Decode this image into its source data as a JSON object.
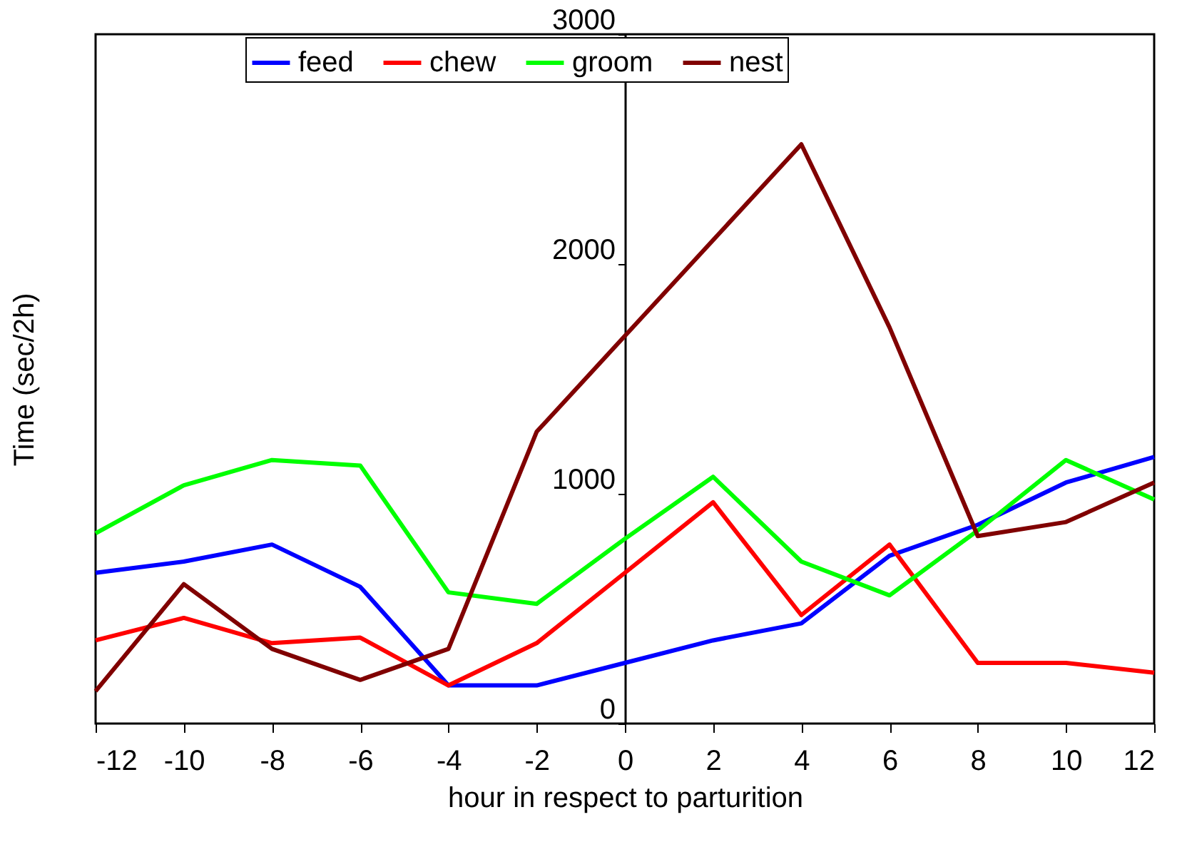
{
  "chart_data": {
    "type": "line",
    "xlabel": "hour  in respect to parturition",
    "ylabel": "Time (sec/2h)",
    "x": [
      -12,
      -10,
      -8,
      -6,
      -4,
      -2,
      0,
      2,
      4,
      6,
      8,
      10,
      12
    ],
    "series": [
      {
        "name": "feed",
        "color": "#0000ff",
        "values": [
          656,
          705,
          779,
          595,
          166,
          166,
          264,
          362,
          436,
          730,
          865,
          1049,
          1160
        ]
      },
      {
        "name": "chew",
        "color": "#ff0000",
        "values": [
          362,
          460,
          350,
          374,
          166,
          350,
          656,
          963,
          472,
          779,
          264,
          264,
          221
        ]
      },
      {
        "name": "groom",
        "color": "#00ff00",
        "values": [
          828,
          1037,
          1147,
          1123,
          571,
          521,
          804,
          1074,
          705,
          558,
          840,
          1147,
          975
        ]
      },
      {
        "name": "nest",
        "color": "#800000",
        "values": [
          141,
          607,
          325,
          190,
          325,
          1270,
          1687,
          2104,
          2521,
          1724,
          816,
          877,
          1049
        ]
      }
    ],
    "xlim": [
      -12,
      12
    ],
    "xticks": [
      -12,
      -10,
      -8,
      -6,
      -4,
      -2,
      0,
      2,
      4,
      6,
      8,
      10,
      12
    ],
    "ylim": [
      0,
      3000
    ],
    "yticks": [
      0,
      1000,
      2000,
      3000
    ],
    "grid": false,
    "legend": "top",
    "marker": "none",
    "line_style": "solid"
  }
}
